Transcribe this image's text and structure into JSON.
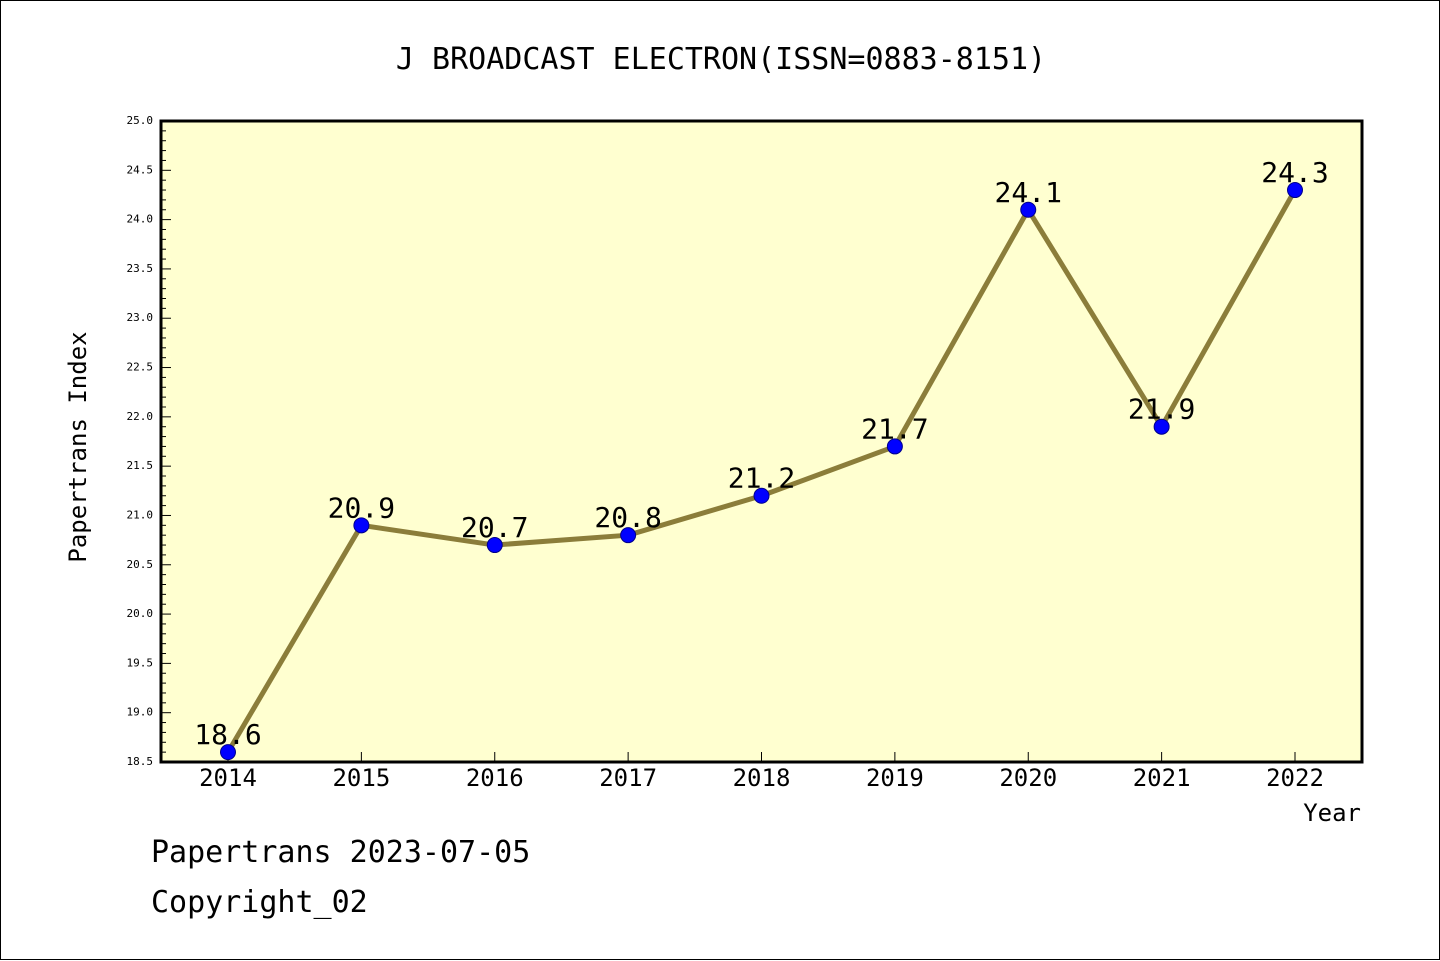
{
  "chart_data": {
    "type": "line",
    "title": "J BROADCAST ELECTRON(ISSN=0883-8151)",
    "xlabel": "Year",
    "ylabel": "Papertrans Index",
    "categories": [
      "2014",
      "2015",
      "2016",
      "2017",
      "2018",
      "2019",
      "2020",
      "2021",
      "2022"
    ],
    "values": [
      18.6,
      20.9,
      20.7,
      20.8,
      21.2,
      21.7,
      24.1,
      21.9,
      24.3
    ],
    "data_labels": [
      "18.6",
      "20.9",
      "20.7",
      "20.8",
      "21.2",
      "21.7",
      "24.1",
      "21.9",
      "24.3"
    ],
    "ylim": [
      18.5,
      25.0
    ],
    "ytick_labels": [
      "18.5",
      "19.0",
      "19.5",
      "20.0",
      "20.5",
      "21.0",
      "21.5",
      "22.0",
      "22.5",
      "23.0",
      "23.5",
      "24.0",
      "24.5",
      "25.0"
    ],
    "grid": false,
    "colors": {
      "plot_background": "#ffffd0",
      "line": "#8b7d3a",
      "marker": "#0000ff"
    }
  },
  "footer": {
    "date_line": "Papertrans 2023-07-05",
    "copyright": "Copyright_02"
  }
}
